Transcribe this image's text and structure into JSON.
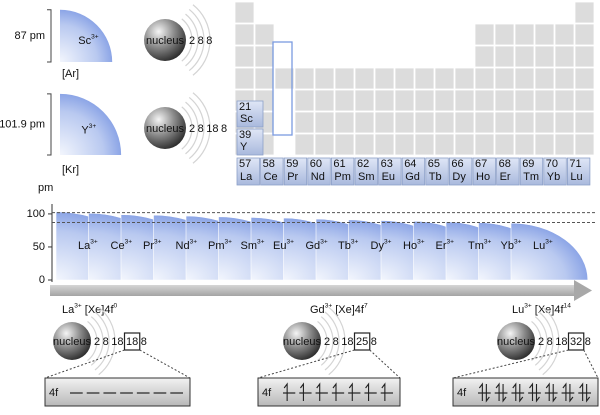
{
  "top_ions": [
    {
      "radius": 87,
      "unit": "pm",
      "symbol": "Sc",
      "charge": "3+",
      "config": "[Ar]",
      "nucleus": "nucleus",
      "shells": [
        2,
        8,
        8
      ]
    },
    {
      "radius": 101.9,
      "unit": "pm",
      "symbol": "Y",
      "charge": "3+",
      "config": "[Kr]",
      "nucleus": "nucleus",
      "shells": [
        2,
        8,
        18,
        8
      ]
    }
  ],
  "periodic_table": {
    "group3": [
      {
        "number": 21,
        "symbol": "Sc"
      },
      {
        "number": 39,
        "symbol": "Y"
      }
    ],
    "lanthanides": [
      {
        "number": 57,
        "symbol": "La"
      },
      {
        "number": 58,
        "symbol": "Ce"
      },
      {
        "number": 59,
        "symbol": "Pr"
      },
      {
        "number": 60,
        "symbol": "Nd"
      },
      {
        "number": 61,
        "symbol": "Pm"
      },
      {
        "number": 62,
        "symbol": "Sm"
      },
      {
        "number": 63,
        "symbol": "Eu"
      },
      {
        "number": 64,
        "symbol": "Gd"
      },
      {
        "number": 65,
        "symbol": "Tb"
      },
      {
        "number": 66,
        "symbol": "Dy"
      },
      {
        "number": 67,
        "symbol": "Ho"
      },
      {
        "number": 68,
        "symbol": "Er"
      },
      {
        "number": 69,
        "symbol": "Tm"
      },
      {
        "number": 70,
        "symbol": "Yb"
      },
      {
        "number": 71,
        "symbol": "Lu"
      }
    ]
  },
  "radius_chart": {
    "axis_label": "pm",
    "ylim": [
      0,
      115
    ],
    "yticks": [
      0,
      50,
      100
    ],
    "ions": [
      {
        "symbol": "La",
        "charge": "3+",
        "radius": 103.2
      },
      {
        "symbol": "Ce",
        "charge": "3+",
        "radius": 101
      },
      {
        "symbol": "Pr",
        "charge": "3+",
        "radius": 99
      },
      {
        "symbol": "Nd",
        "charge": "3+",
        "radius": 98.3
      },
      {
        "symbol": "Pm",
        "charge": "3+",
        "radius": 97
      },
      {
        "symbol": "Sm",
        "charge": "3+",
        "radius": 95.8
      },
      {
        "symbol": "Eu",
        "charge": "3+",
        "radius": 94.7
      },
      {
        "symbol": "Gd",
        "charge": "3+",
        "radius": 93.8
      },
      {
        "symbol": "Tb",
        "charge": "3+",
        "radius": 92.3
      },
      {
        "symbol": "Dy",
        "charge": "3+",
        "radius": 91.2
      },
      {
        "symbol": "Ho",
        "charge": "3+",
        "radius": 90.1
      },
      {
        "symbol": "Er",
        "charge": "3+",
        "radius": 89
      },
      {
        "symbol": "Tm",
        "charge": "3+",
        "radius": 88
      },
      {
        "symbol": "Yb",
        "charge": "3+",
        "radius": 86.8
      },
      {
        "symbol": "Lu",
        "charge": "3+",
        "radius": 86.1
      }
    ]
  },
  "configurations": [
    {
      "symbol": "La",
      "charge": "3+",
      "config": "[Xe]4f",
      "exponent": 0,
      "nucleus": "nucleus",
      "shells": [
        2,
        8,
        18,
        18,
        8
      ],
      "highlight": 3,
      "orbital": "4f"
    },
    {
      "symbol": "Gd",
      "charge": "3+",
      "config": "[Xe]4f",
      "exponent": 7,
      "nucleus": "nucleus",
      "shells": [
        2,
        8,
        18,
        25,
        8
      ],
      "highlight": 3,
      "orbital": "4f"
    },
    {
      "symbol": "Lu",
      "charge": "3+",
      "config": "[Xe]4f",
      "exponent": 14,
      "nucleus": "nucleus",
      "shells": [
        2,
        8,
        18,
        32,
        8
      ],
      "highlight": 3,
      "orbital": "4f"
    }
  ]
}
